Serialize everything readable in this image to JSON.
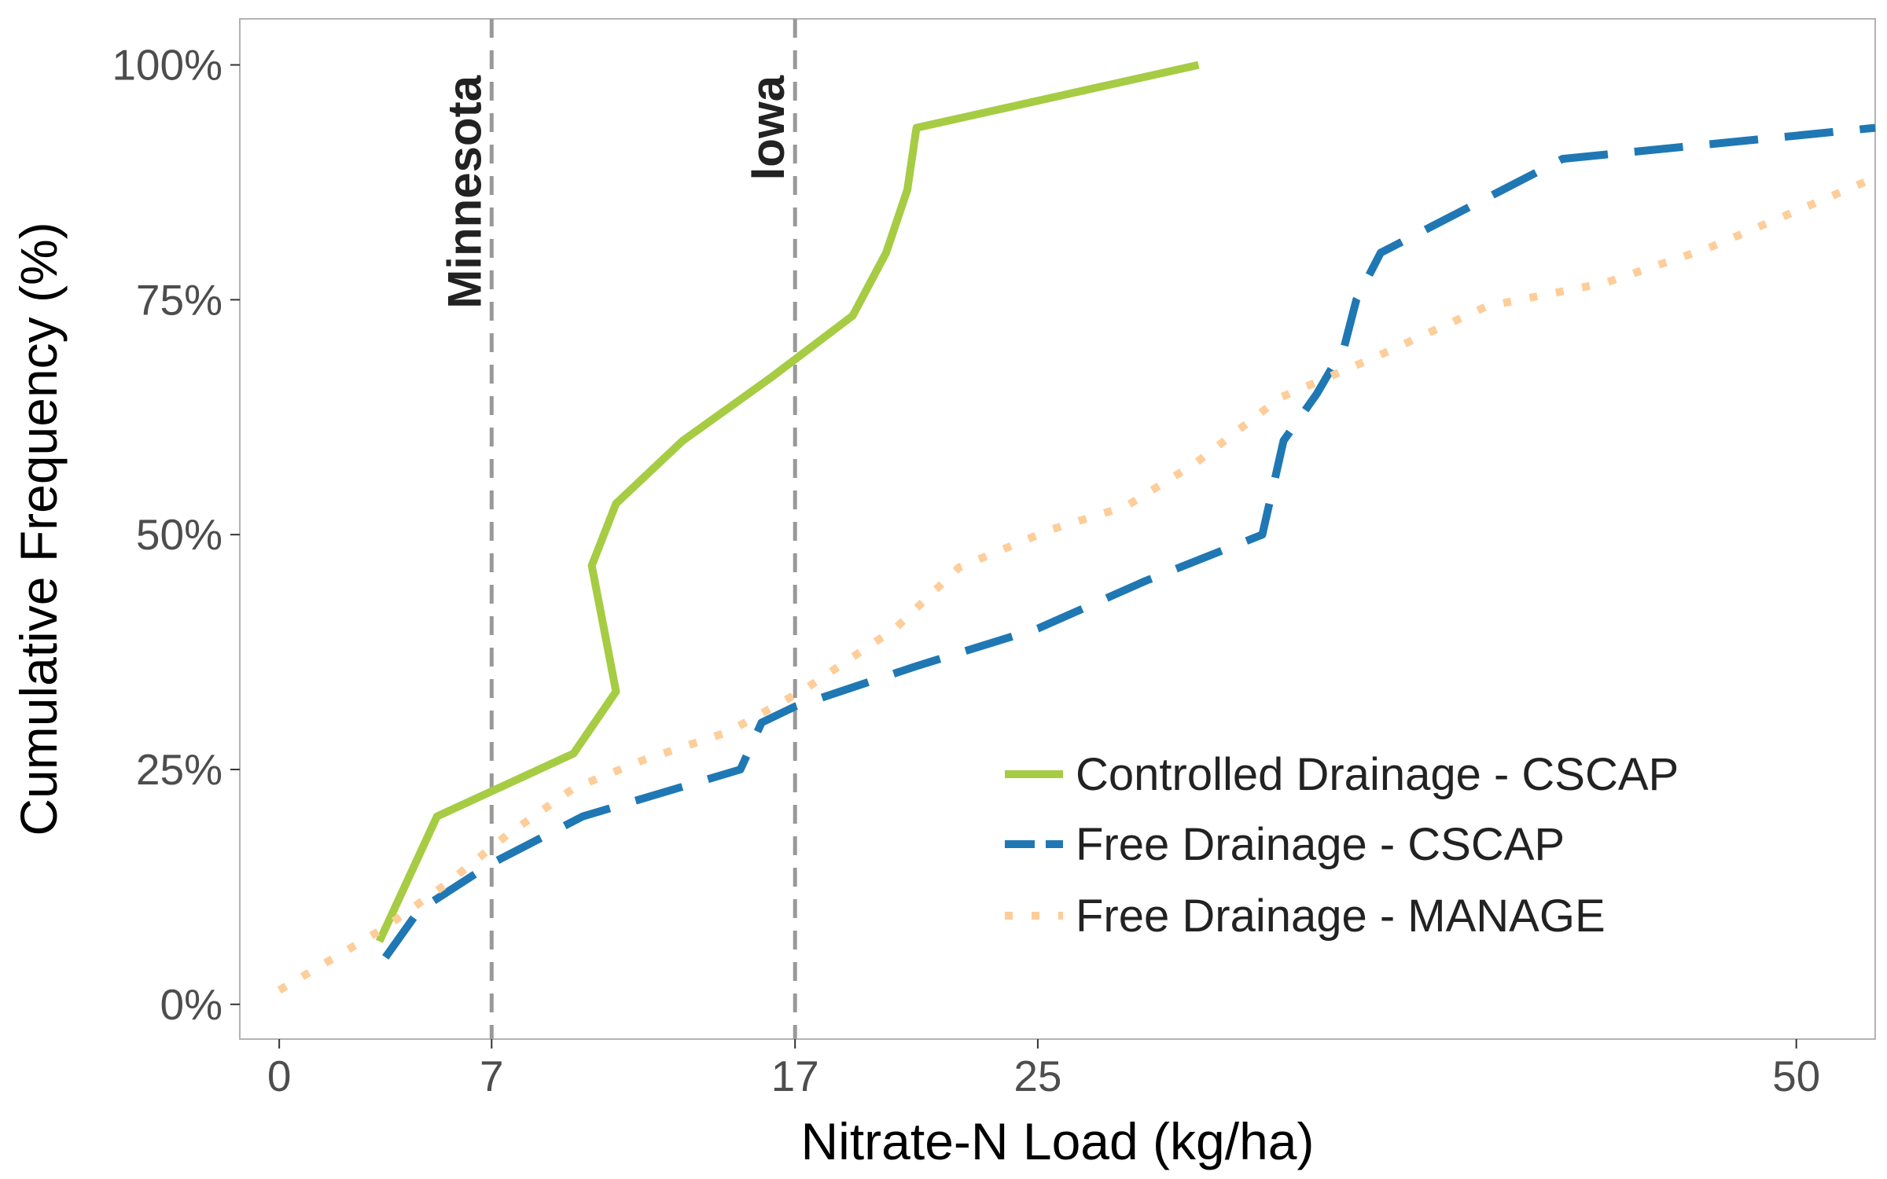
{
  "chart_data": {
    "type": "line",
    "title": "",
    "xlabel": "Nitrate-N Load (kg/ha)",
    "ylabel": "Cumulative Frequency (%)",
    "xlim": [
      -1.3,
      52.6
    ],
    "ylim": [
      -3.7,
      104.9
    ],
    "x_ticks": [
      0,
      7,
      17,
      25,
      50
    ],
    "y_ticks": [
      0,
      25,
      50,
      75,
      100
    ],
    "y_tick_labels": [
      "0%",
      "25%",
      "50%",
      "75%",
      "100%"
    ],
    "grid": false,
    "legend_position": "bottom-right",
    "reference_lines": [
      {
        "label": "Minnesota",
        "x": 7,
        "color": "#999999"
      },
      {
        "label": "Iowa",
        "x": 17,
        "color": "#999999"
      }
    ],
    "series": [
      {
        "name": "Controlled Drainage - CSCAP",
        "color": "#a6cc44",
        "style": "solid",
        "x": [
          3.3,
          5.2,
          9.7,
          11.1,
          10.7,
          10.3,
          11.1,
          13.3,
          16.2,
          18.9,
          20.0,
          20.7,
          21.0,
          30.3
        ],
        "y": [
          6.7,
          20.0,
          26.7,
          33.3,
          40.0,
          46.7,
          53.3,
          60.0,
          66.7,
          73.3,
          80.0,
          86.7,
          93.3,
          100.0
        ]
      },
      {
        "name": "Free Drainage - CSCAP",
        "color": "#1f78b4",
        "style": "dashed",
        "x": [
          3.5,
          4.6,
          7.0,
          10.0,
          15.2,
          15.9,
          17.0,
          21.0,
          25.0,
          28.5,
          32.4,
          33.1,
          34.2,
          35.1,
          35.5,
          36.3,
          42.3,
          52.6
        ],
        "y": [
          5.0,
          10.0,
          15.0,
          20.0,
          25.0,
          30.0,
          31.7,
          36.0,
          40.0,
          45.0,
          50.0,
          60.0,
          65.0,
          70.0,
          75.0,
          80.0,
          90.0,
          93.3
        ]
      },
      {
        "name": "Free Drainage - MANAGE",
        "color": "#fdcd9a",
        "style": "dotted",
        "x": [
          0.0,
          3.4,
          5.5,
          7.5,
          9.7,
          12.0,
          14.8,
          17.3,
          20.3,
          22.4,
          25.4,
          27.9,
          30.2,
          33.0,
          36.2,
          39.8,
          43.7,
          47.1,
          52.6
        ],
        "y": [
          1.5,
          8.0,
          12.8,
          18.0,
          23.0,
          26.0,
          29.0,
          33.5,
          40.0,
          46.5,
          50.5,
          53.0,
          57.6,
          64.6,
          69.0,
          74.3,
          76.8,
          80.5,
          88.0
        ]
      }
    ]
  }
}
